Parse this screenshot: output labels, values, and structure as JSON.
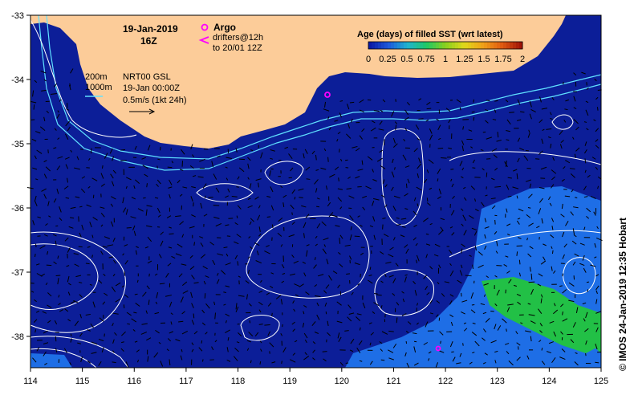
{
  "header": {
    "date": "19-Jan-2019",
    "time": "16Z"
  },
  "argo": {
    "label": "Argo",
    "drifter_line1": "drifters@12h",
    "drifter_line2": "to 20/01 12Z",
    "marker_color": "#ff00ff"
  },
  "depth_labels": {
    "d200": "200m",
    "d1000": "1000m"
  },
  "product": {
    "line1": "NRT00 GSL",
    "line2": "19-Jan 00:00Z",
    "line3": "0.5m/s (1kt 24h)"
  },
  "legend": {
    "title": "Age (days) of filled SST (wrt latest)",
    "ticks": [
      "0",
      "0.25",
      "0.5",
      "0.75",
      "1",
      "1.25",
      "1.5",
      "1.75",
      "2"
    ],
    "colors": [
      "#0a1aa6",
      "#1f5adc",
      "#1fb4d0",
      "#1fc864",
      "#8ad01e",
      "#e0d81a",
      "#f0a018",
      "#e05a10",
      "#a01408"
    ]
  },
  "axes": {
    "x_ticks": [
      "114",
      "115",
      "116",
      "117",
      "118",
      "119",
      "120",
      "121",
      "122",
      "123",
      "124",
      "125"
    ],
    "y_ticks": [
      "-33",
      "-34",
      "-35",
      "-36",
      "-37",
      "-38"
    ]
  },
  "credit": "© IMOS 24-Jan-2019 12:35 Hobart",
  "colors": {
    "ocean": "#0c1e98",
    "land": "#fccc99",
    "green_patch": "#22c046",
    "light_patch": "#1e6ee6",
    "contour": "#ffffff",
    "isobath": "#5fe0ff"
  }
}
